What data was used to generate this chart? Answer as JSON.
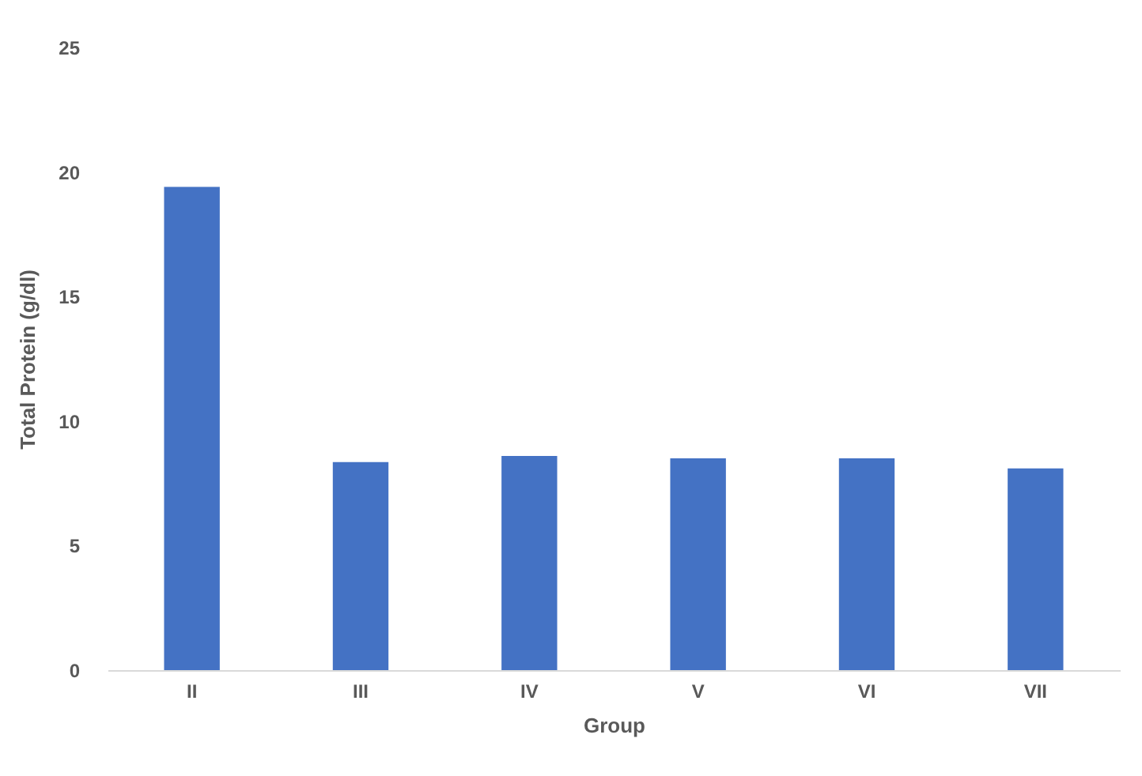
{
  "chart_data": {
    "type": "bar",
    "xlabel": "Group",
    "ylabel": "Total Protein (g/dl)",
    "categories": [
      "II",
      "III",
      "IV",
      "V",
      "VI",
      "VII"
    ],
    "values": [
      19.4,
      8.35,
      8.6,
      8.5,
      8.5,
      8.1
    ],
    "color": "#4472c4",
    "ylim": [
      0,
      25
    ],
    "yticks": [
      0,
      5,
      10,
      15,
      20,
      25
    ],
    "grid": false
  }
}
